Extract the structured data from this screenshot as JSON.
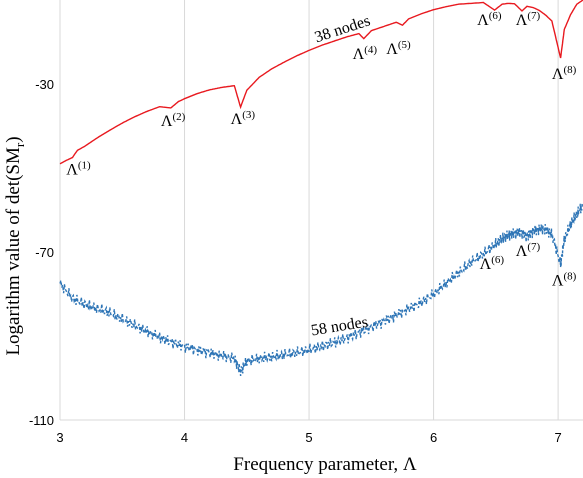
{
  "chart_data": {
    "type": "line",
    "title": "",
    "xlabel": "Frequency parameter, Λ",
    "ylabel": "Logarithm value of  det(SM",
    "ylabel_sub": "r",
    "ylabel_close": ")",
    "xlim": [
      3.0,
      7.2
    ],
    "ylim": [
      -110,
      -10
    ],
    "x_ticks": [
      {
        "value": 3,
        "label": "3"
      },
      {
        "value": 4,
        "label": "4"
      },
      {
        "value": 5,
        "label": "5"
      },
      {
        "value": 6,
        "label": "6"
      },
      {
        "value": 7,
        "label": "7"
      }
    ],
    "y_ticks": [
      {
        "value": -30,
        "label": "-30"
      },
      {
        "value": -70,
        "label": "-70"
      },
      {
        "value": -110,
        "label": "-110"
      }
    ],
    "grid": "vertical",
    "series": [
      {
        "name": "38 nodes",
        "style": "solid",
        "color": "#e8191f",
        "x": [
          3.0,
          3.05,
          3.1,
          3.14,
          3.2,
          3.3,
          3.4,
          3.5,
          3.6,
          3.7,
          3.8,
          3.89,
          3.95,
          4.0,
          4.1,
          4.2,
          4.3,
          4.4,
          4.45,
          4.5,
          4.6,
          4.7,
          4.8,
          4.9,
          5.0,
          5.1,
          5.2,
          5.3,
          5.4,
          5.44,
          5.5,
          5.6,
          5.7,
          5.75,
          5.8,
          5.9,
          6.0,
          6.1,
          6.2,
          6.3,
          6.4,
          6.49,
          6.55,
          6.6,
          6.65,
          6.71,
          6.75,
          6.8,
          6.85,
          6.9,
          6.95,
          7.02,
          7.05,
          7.1,
          7.15,
          7.2
        ],
        "values": [
          -49.0,
          -48.2,
          -47.5,
          -45.8,
          -44.8,
          -42.8,
          -41.0,
          -39.3,
          -37.8,
          -36.5,
          -35.4,
          -35.7,
          -34.2,
          -33.5,
          -32.3,
          -31.4,
          -30.8,
          -30.4,
          -35.5,
          -31.5,
          -28.4,
          -26.4,
          -24.8,
          -23.3,
          -22.0,
          -20.8,
          -19.8,
          -18.8,
          -18.0,
          -19.2,
          -17.3,
          -16.3,
          -15.3,
          -16.0,
          -14.5,
          -13.3,
          -12.3,
          -11.6,
          -11.0,
          -10.8,
          -10.6,
          -12.4,
          -11.0,
          -10.8,
          -10.9,
          -12.6,
          -11.5,
          -11.8,
          -12.5,
          -13.6,
          -15.0,
          -23.8,
          -17.0,
          -13.5,
          -11.0,
          -10.0
        ]
      },
      {
        "name": "58 nodes",
        "style": "dashed",
        "color": "#2e75b6",
        "x": [
          3.0,
          3.1,
          3.2,
          3.3,
          3.4,
          3.5,
          3.6,
          3.7,
          3.8,
          3.9,
          4.0,
          4.1,
          4.2,
          4.3,
          4.4,
          4.45,
          4.5,
          4.6,
          4.7,
          4.8,
          4.9,
          5.0,
          5.1,
          5.2,
          5.3,
          5.4,
          5.5,
          5.6,
          5.7,
          5.8,
          5.9,
          6.0,
          6.1,
          6.2,
          6.3,
          6.4,
          6.49,
          6.55,
          6.6,
          6.65,
          6.7,
          6.75,
          6.8,
          6.85,
          6.9,
          6.95,
          7.02,
          7.05,
          7.1,
          7.15,
          7.2
        ],
        "values": [
          -77.5,
          -81.0,
          -82.5,
          -83.5,
          -84.5,
          -86.0,
          -87.5,
          -89.0,
          -90.3,
          -91.5,
          -92.5,
          -93.3,
          -94.0,
          -94.6,
          -95.3,
          -98.5,
          -96.0,
          -95.4,
          -95.0,
          -94.5,
          -94.0,
          -93.3,
          -92.5,
          -91.5,
          -90.5,
          -89.2,
          -87.8,
          -86.5,
          -85.0,
          -83.5,
          -82.0,
          -80.0,
          -77.5,
          -75.0,
          -72.5,
          -70.5,
          -68.3,
          -66.8,
          -66.0,
          -65.5,
          -65.2,
          -66.3,
          -65.0,
          -64.5,
          -64.6,
          -65.8,
          -73.0,
          -67.0,
          -63.5,
          -61.0,
          -59.0
        ]
      }
    ],
    "annotations": [
      {
        "text": "38 nodes",
        "x": 5.28,
        "y": -18.0,
        "rotate": -18
      },
      {
        "text": "58 nodes",
        "x": 5.25,
        "y": -88.8,
        "rotate": -9
      },
      {
        "base": "Λ",
        "sup": "(1)",
        "x": 3.05,
        "y": -51.5
      },
      {
        "base": "Λ",
        "sup": "(2)",
        "x": 3.81,
        "y": -40.0
      },
      {
        "base": "Λ",
        "sup": "(3)",
        "x": 4.37,
        "y": -39.5
      },
      {
        "base": "Λ",
        "sup": "(4)",
        "x": 5.35,
        "y": -24.0
      },
      {
        "base": "Λ",
        "sup": "(5)",
        "x": 5.62,
        "y": -22.8
      },
      {
        "base": "Λ",
        "sup": "(6)",
        "x": 6.35,
        "y": -16.0
      },
      {
        "base": "Λ",
        "sup": "(7)",
        "x": 6.66,
        "y": -16.0
      },
      {
        "base": "Λ",
        "sup": "(8)",
        "x": 6.95,
        "y": -28.8
      },
      {
        "base": "Λ",
        "sup": "(6)",
        "x": 6.37,
        "y": -74.0
      },
      {
        "base": "Λ",
        "sup": "(7)",
        "x": 6.66,
        "y": -71.0
      },
      {
        "base": "Λ",
        "sup": "(8)",
        "x": 6.95,
        "y": -78.0
      }
    ]
  }
}
